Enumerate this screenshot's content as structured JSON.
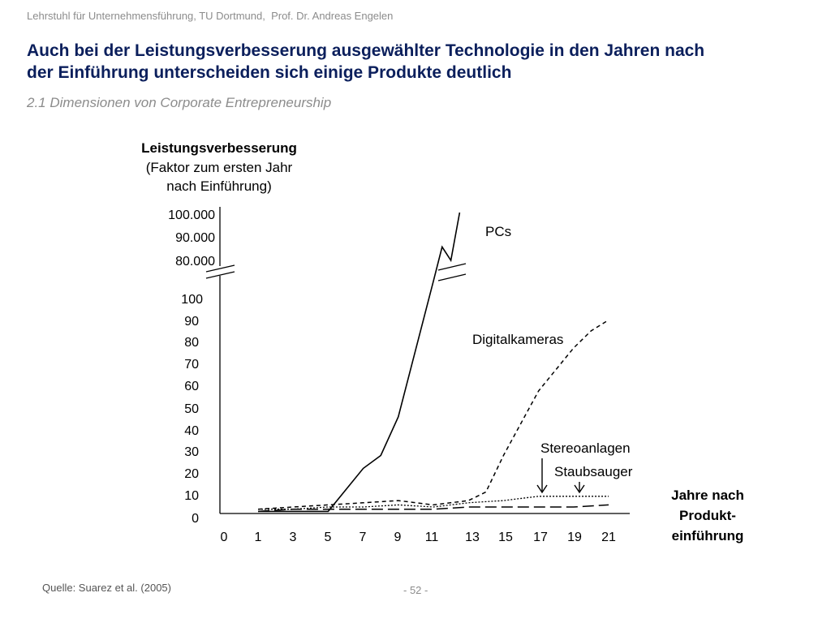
{
  "header": {
    "institution": "Lehrstuhl für Unternehmensführung, TU Dortmund,  Prof. Dr. Andreas Engelen"
  },
  "slide": {
    "title_line1": "Auch bei der Leistungsverbesserung ausgewählter Technologie in den Jahren nach",
    "title_line2": "der Einführung unterscheiden sich einige Produkte deutlich",
    "subtitle": "2.1 Dimensionen von Corporate Entrepreneurship"
  },
  "footer": {
    "source": "Quelle: Suarez et al. (2005)",
    "page": "- 52 -"
  },
  "chart_data": {
    "type": "line",
    "ylabel_line1": "Leistungsverbesserung",
    "ylabel_line2": "(Faktor zum ersten Jahr",
    "ylabel_line3": "nach Einführung)",
    "xlabel_line1": "Jahre nach",
    "xlabel_line2": "Produkt-",
    "xlabel_line3": "einführung",
    "x_ticks": [
      "0",
      "1",
      "3",
      "5",
      "7",
      "9",
      "11",
      "13",
      "15",
      "17",
      "19",
      "21"
    ],
    "y_ticks_lower": [
      "0",
      "10",
      "20",
      "30",
      "40",
      "50",
      "60",
      "70",
      "80",
      "90",
      "100"
    ],
    "y_ticks_upper": [
      "80.000",
      "90.000",
      "100.000"
    ],
    "y_axis_break": true,
    "grid": false,
    "series": [
      {
        "name": "PCs",
        "style": "solid",
        "color": "#000000",
        "points": [
          [
            1,
            1
          ],
          [
            3,
            1
          ],
          [
            5,
            1
          ],
          [
            7,
            21
          ],
          [
            8,
            27
          ],
          [
            9,
            45
          ],
          [
            11,
            108
          ],
          [
            11.5,
            124
          ],
          [
            12,
            80000
          ],
          [
            12.5,
            100000
          ]
        ]
      },
      {
        "name": "Digitalkameras",
        "style": "dashed",
        "color": "#000000",
        "points": [
          [
            1,
            2
          ],
          [
            3,
            3
          ],
          [
            5,
            4
          ],
          [
            7,
            5
          ],
          [
            9,
            6
          ],
          [
            11,
            4
          ],
          [
            13,
            6
          ],
          [
            14,
            10
          ],
          [
            15,
            27
          ],
          [
            17,
            57
          ],
          [
            19,
            77
          ],
          [
            20,
            85
          ],
          [
            21,
            90
          ]
        ]
      },
      {
        "name": "Stereoanlagen",
        "style": "dotted",
        "color": "#000000",
        "points": [
          [
            1,
            2
          ],
          [
            3,
            2
          ],
          [
            5,
            3
          ],
          [
            7,
            3
          ],
          [
            9,
            4
          ],
          [
            11,
            3
          ],
          [
            13,
            5
          ],
          [
            15,
            6
          ],
          [
            17,
            8
          ],
          [
            19,
            8
          ],
          [
            21,
            8
          ]
        ]
      },
      {
        "name": "Staubsauger",
        "style": "longdash",
        "color": "#000000",
        "points": [
          [
            1,
            1
          ],
          [
            3,
            2
          ],
          [
            5,
            2
          ],
          [
            7,
            2
          ],
          [
            9,
            2
          ],
          [
            11,
            2
          ],
          [
            13,
            3
          ],
          [
            15,
            3
          ],
          [
            17,
            3
          ],
          [
            19,
            3
          ],
          [
            21,
            4
          ]
        ]
      }
    ]
  }
}
